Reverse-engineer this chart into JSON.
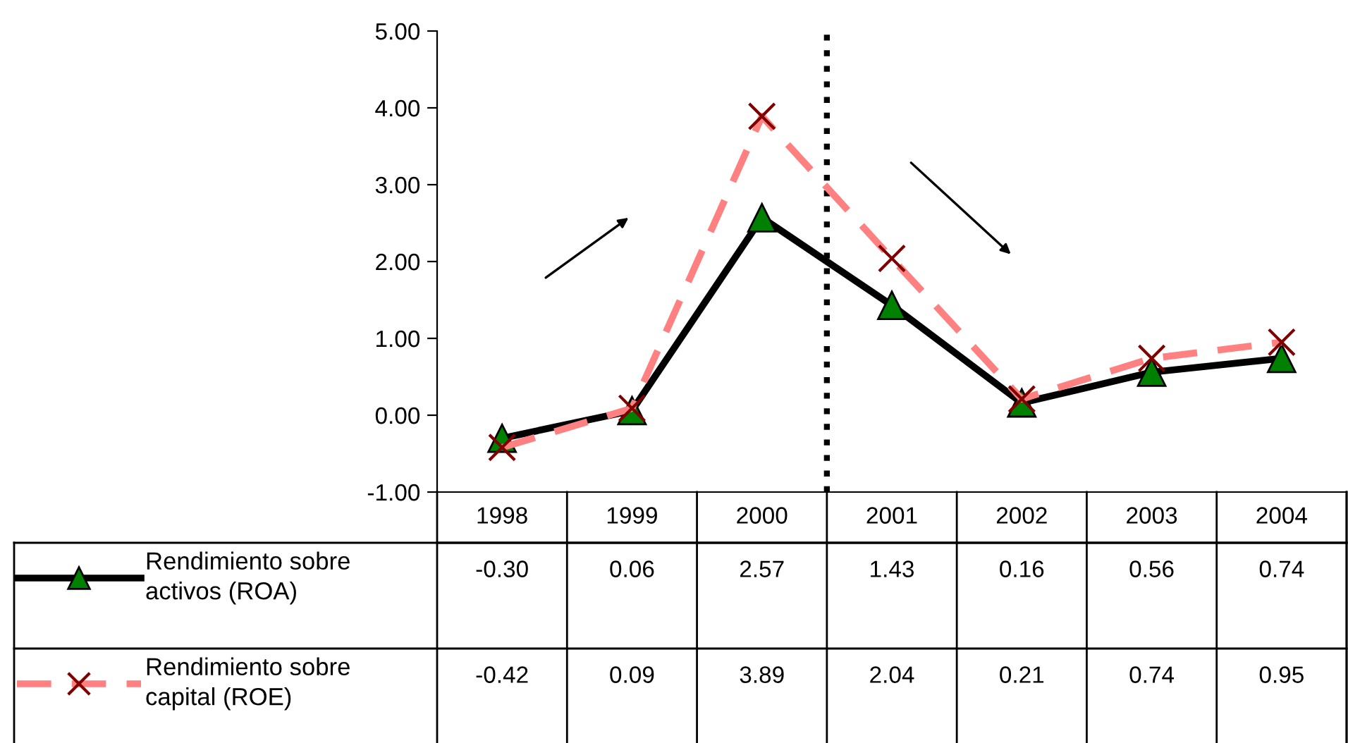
{
  "chart_data": {
    "type": "line",
    "categories": [
      "1998",
      "1999",
      "2000",
      "2001",
      "2002",
      "2003",
      "2004"
    ],
    "series": [
      {
        "name": "Rendimiento sobre activos (ROA)",
        "color": "#000000",
        "marker": "triangle",
        "line_style": "solid",
        "values": [
          -0.3,
          0.06,
          2.57,
          1.43,
          0.16,
          0.56,
          0.74
        ],
        "value_labels": [
          "-0.30",
          "0.06",
          "2.57",
          "1.43",
          "0.16",
          "0.56",
          "0.74"
        ]
      },
      {
        "name": "Rendimiento sobre capital (ROE)",
        "color": "#ff8080",
        "marker": "cross",
        "line_style": "dashed",
        "values": [
          -0.42,
          0.09,
          3.89,
          2.04,
          0.21,
          0.74,
          0.95
        ],
        "value_labels": [
          "-0.42",
          "0.09",
          "3.89",
          "2.04",
          "0.21",
          "0.74",
          "0.95"
        ]
      }
    ],
    "ylim": [
      -1,
      5
    ],
    "yticks": [
      {
        "value": -1,
        "label": "-1.00"
      },
      {
        "value": 0,
        "label": "0.00"
      },
      {
        "value": 1,
        "label": "1.00"
      },
      {
        "value": 2,
        "label": "2.00"
      },
      {
        "value": 3,
        "label": "3.00"
      },
      {
        "value": 4,
        "label": "4.00"
      },
      {
        "value": 5,
        "label": "5.00"
      }
    ],
    "grid": false,
    "legend": "bottom left"
  }
}
